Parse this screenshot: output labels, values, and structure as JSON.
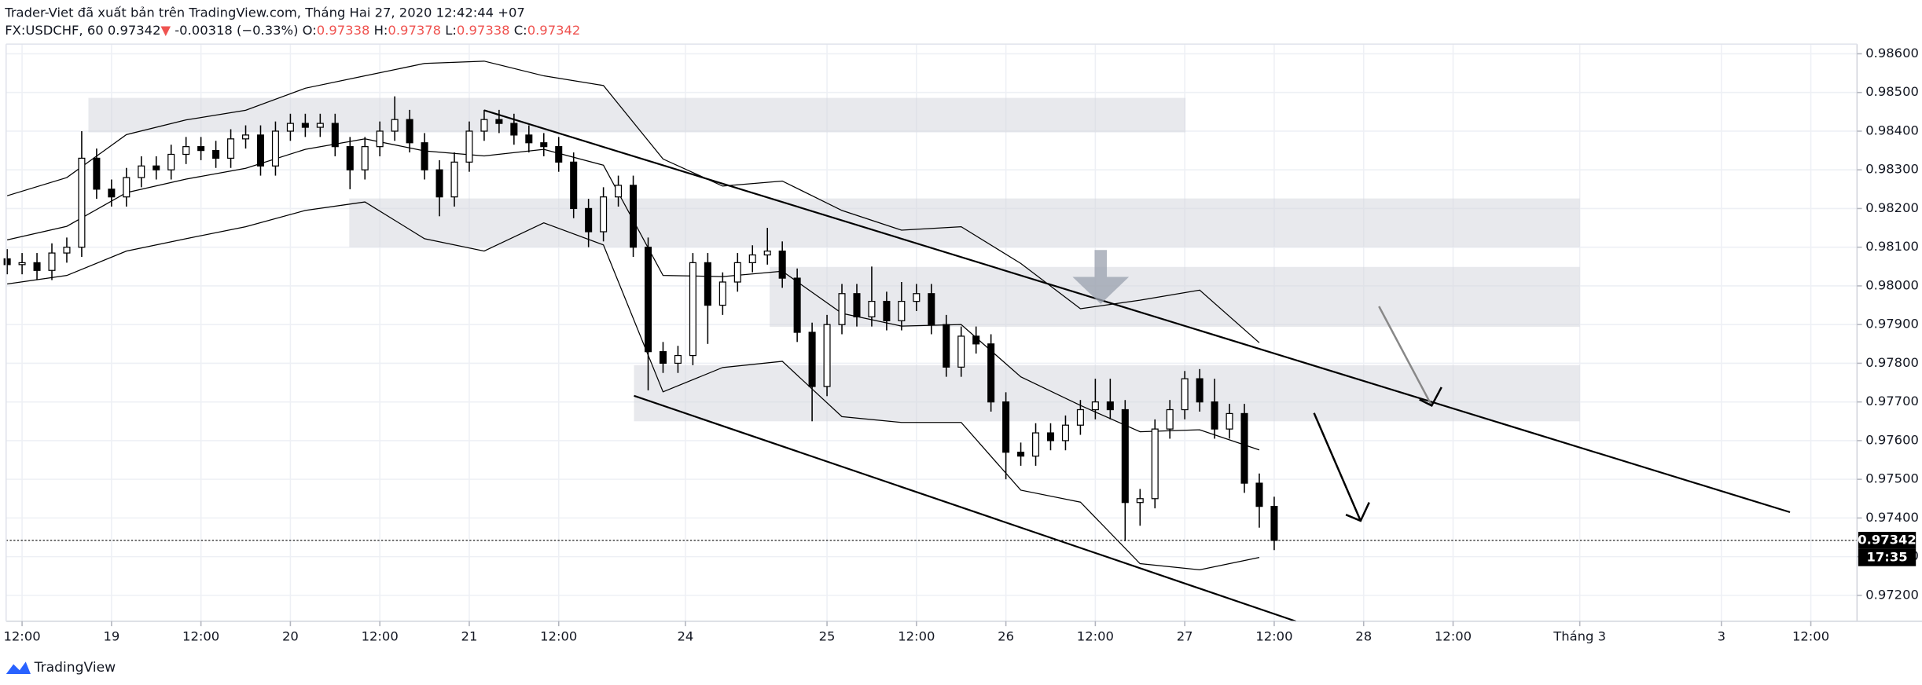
{
  "header": {
    "title": "Trader-Viet đã xuất bản trên TradingView.com, Tháng Hai 27, 2020 12:42:44 +07",
    "symbol": "FX:USDCHF, 60",
    "last": "0.97342",
    "direction": "▼",
    "change": "-0.00318 (−0.33%)",
    "ohlc": [
      {
        "key": "O:",
        "value": "0.97338"
      },
      {
        "key": "H:",
        "value": "0.97378"
      },
      {
        "key": "L:",
        "value": "0.97338"
      },
      {
        "key": "C:",
        "value": "0.97342"
      }
    ]
  },
  "chart_data": {
    "type": "candlestick",
    "grid": true,
    "up_color": "#ffffff",
    "down_color": "#000000",
    "xlim": [
      -2.14,
      246.2
    ],
    "ylim": [
      0.97133,
      0.98625
    ],
    "xticks": [
      {
        "value": 0,
        "label": "12:00"
      },
      {
        "value": 12,
        "label": "19"
      },
      {
        "value": 24,
        "label": "12:00"
      },
      {
        "value": 36,
        "label": "20"
      },
      {
        "value": 48,
        "label": "12:00"
      },
      {
        "value": 60,
        "label": "21"
      },
      {
        "value": 72,
        "label": "12:00"
      },
      {
        "value": 89,
        "label": "24"
      },
      {
        "value": 108,
        "label": "25"
      },
      {
        "value": 120,
        "label": "12:00"
      },
      {
        "value": 132,
        "label": "26"
      },
      {
        "value": 144,
        "label": "12:00"
      },
      {
        "value": 156,
        "label": "27"
      },
      {
        "value": 168,
        "label": "12:00"
      },
      {
        "value": 180,
        "label": "28"
      },
      {
        "value": 192,
        "label": "12:00"
      },
      {
        "value": 209,
        "label": "Tháng 3"
      },
      {
        "value": 228,
        "label": "3"
      },
      {
        "value": 240,
        "label": "12:00"
      }
    ],
    "yticks": [
      {
        "value": 0.972,
        "label": "0.97200"
      },
      {
        "value": 0.973,
        "label": "0.97300"
      },
      {
        "value": 0.974,
        "label": "0.97400"
      },
      {
        "value": 0.975,
        "label": "0.97500"
      },
      {
        "value": 0.976,
        "label": "0.97600"
      },
      {
        "value": 0.977,
        "label": "0.97700"
      },
      {
        "value": 0.978,
        "label": "0.97800"
      },
      {
        "value": 0.979,
        "label": "0.97900"
      },
      {
        "value": 0.98,
        "label": "0.98000"
      },
      {
        "value": 0.981,
        "label": "0.98100"
      },
      {
        "value": 0.982,
        "label": "0.98200"
      },
      {
        "value": 0.983,
        "label": "0.98300"
      },
      {
        "value": 0.984,
        "label": "0.98400"
      },
      {
        "value": 0.985,
        "label": "0.98500"
      },
      {
        "value": 0.986,
        "label": "0.98600"
      }
    ],
    "x": [
      -2,
      0,
      2,
      4,
      6,
      8,
      10,
      12,
      14,
      16,
      18,
      20,
      22,
      24,
      26,
      28,
      30,
      32,
      34,
      36,
      38,
      40,
      42,
      44,
      46,
      48,
      50,
      52,
      54,
      56,
      58,
      60,
      62,
      64,
      66,
      68,
      70,
      72,
      74,
      76,
      78,
      80,
      82,
      84,
      86,
      88,
      90,
      92,
      94,
      96,
      98,
      100,
      102,
      104,
      106,
      108,
      110,
      112,
      114,
      116,
      118,
      120,
      122,
      124,
      126,
      128,
      130,
      132,
      134,
      136,
      138,
      140,
      142,
      144,
      146,
      148,
      150,
      152,
      154,
      156,
      158,
      160,
      162,
      164,
      166,
      168
    ],
    "ohlc": [
      [
        0.9807,
        0.98095,
        0.9803,
        0.98055
      ],
      [
        0.98055,
        0.98085,
        0.9803,
        0.9806
      ],
      [
        0.9806,
        0.98085,
        0.98015,
        0.9804
      ],
      [
        0.9804,
        0.9811,
        0.98015,
        0.98085
      ],
      [
        0.98085,
        0.98125,
        0.9806,
        0.981
      ],
      [
        0.981,
        0.984,
        0.98075,
        0.9833
      ],
      [
        0.9833,
        0.98355,
        0.98225,
        0.9825
      ],
      [
        0.9825,
        0.98275,
        0.98205,
        0.9823
      ],
      [
        0.9823,
        0.98305,
        0.98205,
        0.9828
      ],
      [
        0.9828,
        0.98335,
        0.98255,
        0.9831
      ],
      [
        0.9831,
        0.98335,
        0.98275,
        0.983
      ],
      [
        0.983,
        0.98365,
        0.98275,
        0.9834
      ],
      [
        0.9834,
        0.98385,
        0.98315,
        0.9836
      ],
      [
        0.9836,
        0.98385,
        0.98325,
        0.9835
      ],
      [
        0.9835,
        0.98375,
        0.98305,
        0.9833
      ],
      [
        0.9833,
        0.98405,
        0.98305,
        0.9838
      ],
      [
        0.9838,
        0.98415,
        0.98355,
        0.9839
      ],
      [
        0.9839,
        0.98415,
        0.98285,
        0.9831
      ],
      [
        0.9831,
        0.98425,
        0.98285,
        0.984
      ],
      [
        0.984,
        0.98445,
        0.98375,
        0.9842
      ],
      [
        0.9842,
        0.98445,
        0.98385,
        0.9841
      ],
      [
        0.9841,
        0.98445,
        0.98385,
        0.9842
      ],
      [
        0.9842,
        0.98445,
        0.98335,
        0.9836
      ],
      [
        0.9836,
        0.98385,
        0.9825,
        0.983
      ],
      [
        0.983,
        0.98385,
        0.98275,
        0.9836
      ],
      [
        0.9836,
        0.98425,
        0.98335,
        0.984
      ],
      [
        0.984,
        0.9849,
        0.98375,
        0.9843
      ],
      [
        0.9843,
        0.98455,
        0.98345,
        0.9837
      ],
      [
        0.9837,
        0.98395,
        0.98275,
        0.983
      ],
      [
        0.983,
        0.98325,
        0.9818,
        0.9823
      ],
      [
        0.9823,
        0.98345,
        0.98205,
        0.9832
      ],
      [
        0.9832,
        0.98425,
        0.98295,
        0.984
      ],
      [
        0.984,
        0.98455,
        0.98375,
        0.9843
      ],
      [
        0.9843,
        0.98455,
        0.98395,
        0.9842
      ],
      [
        0.9842,
        0.98445,
        0.98365,
        0.9839
      ],
      [
        0.9839,
        0.98415,
        0.98345,
        0.9837
      ],
      [
        0.9837,
        0.98395,
        0.98335,
        0.9836
      ],
      [
        0.9836,
        0.98385,
        0.98295,
        0.9832
      ],
      [
        0.9832,
        0.98345,
        0.98175,
        0.982
      ],
      [
        0.982,
        0.98225,
        0.981,
        0.9814
      ],
      [
        0.9814,
        0.98255,
        0.98115,
        0.9823
      ],
      [
        0.9823,
        0.98285,
        0.98205,
        0.9826
      ],
      [
        0.9826,
        0.98285,
        0.98075,
        0.981
      ],
      [
        0.981,
        0.98125,
        0.9773,
        0.9783
      ],
      [
        0.9783,
        0.97855,
        0.97775,
        0.978
      ],
      [
        0.978,
        0.97845,
        0.97775,
        0.9782
      ],
      [
        0.9782,
        0.98085,
        0.97795,
        0.9806
      ],
      [
        0.9806,
        0.98085,
        0.9785,
        0.9795
      ],
      [
        0.9795,
        0.98035,
        0.97925,
        0.9801
      ],
      [
        0.9801,
        0.98085,
        0.97985,
        0.9806
      ],
      [
        0.9806,
        0.98105,
        0.98035,
        0.9808
      ],
      [
        0.9808,
        0.9815,
        0.98055,
        0.9809
      ],
      [
        0.9809,
        0.98115,
        0.97995,
        0.9802
      ],
      [
        0.9802,
        0.98045,
        0.97855,
        0.9788
      ],
      [
        0.9788,
        0.97905,
        0.9765,
        0.9774
      ],
      [
        0.9774,
        0.97925,
        0.97715,
        0.979
      ],
      [
        0.979,
        0.98005,
        0.97875,
        0.9798
      ],
      [
        0.9798,
        0.98005,
        0.97895,
        0.9792
      ],
      [
        0.9792,
        0.9805,
        0.97895,
        0.9796
      ],
      [
        0.9796,
        0.97985,
        0.97885,
        0.9791
      ],
      [
        0.9791,
        0.9801,
        0.97885,
        0.9796
      ],
      [
        0.9796,
        0.98005,
        0.97935,
        0.9798
      ],
      [
        0.9798,
        0.98005,
        0.97875,
        0.979
      ],
      [
        0.979,
        0.97925,
        0.97765,
        0.9779
      ],
      [
        0.9779,
        0.97895,
        0.97765,
        0.9787
      ],
      [
        0.9787,
        0.97895,
        0.97825,
        0.9785
      ],
      [
        0.9785,
        0.97875,
        0.97675,
        0.977
      ],
      [
        0.977,
        0.97725,
        0.975,
        0.9757
      ],
      [
        0.9757,
        0.97595,
        0.97535,
        0.9756
      ],
      [
        0.9756,
        0.97645,
        0.97535,
        0.9762
      ],
      [
        0.9762,
        0.97645,
        0.97575,
        0.976
      ],
      [
        0.976,
        0.97665,
        0.97575,
        0.9764
      ],
      [
        0.9764,
        0.97705,
        0.97615,
        0.9768
      ],
      [
        0.9768,
        0.9776,
        0.97655,
        0.977
      ],
      [
        0.977,
        0.9776,
        0.97655,
        0.9768
      ],
      [
        0.9768,
        0.97705,
        0.9734,
        0.9744
      ],
      [
        0.9744,
        0.97475,
        0.9738,
        0.9745
      ],
      [
        0.9745,
        0.97655,
        0.97425,
        0.9763
      ],
      [
        0.9763,
        0.97705,
        0.97605,
        0.9768
      ],
      [
        0.9768,
        0.9778,
        0.97655,
        0.9776
      ],
      [
        0.9776,
        0.97785,
        0.97675,
        0.977
      ],
      [
        0.977,
        0.9776,
        0.97605,
        0.9763
      ],
      [
        0.9763,
        0.97695,
        0.97605,
        0.9767
      ],
      [
        0.9767,
        0.97695,
        0.97465,
        0.9749
      ],
      [
        0.9749,
        0.97515,
        0.97375,
        0.9743
      ],
      [
        0.9743,
        0.97455,
        0.97317,
        0.97342
      ]
    ],
    "bands": {
      "x": [
        -2,
        6,
        14,
        22,
        30,
        38,
        46,
        54,
        62,
        70,
        78,
        86,
        94,
        102,
        110,
        118,
        126,
        134,
        142,
        150,
        158,
        166
      ],
      "upper": [
        0.98233,
        0.9828,
        0.98391,
        0.98429,
        0.98454,
        0.98511,
        0.98543,
        0.98575,
        0.98581,
        0.98543,
        0.98518,
        0.98328,
        0.98258,
        0.98271,
        0.98195,
        0.98144,
        0.98153,
        0.98058,
        0.97941,
        0.97963,
        0.97989,
        0.97853
      ],
      "middle": [
        0.98119,
        0.98154,
        0.98241,
        0.98276,
        0.98304,
        0.98353,
        0.9838,
        0.98349,
        0.98336,
        0.98353,
        0.98312,
        0.98027,
        0.98024,
        0.98038,
        0.97929,
        0.97896,
        0.979,
        0.97765,
        0.97691,
        0.97623,
        0.97628,
        0.97576
      ],
      "lower": [
        0.98005,
        0.98027,
        0.9809,
        0.98122,
        0.98153,
        0.98195,
        0.98217,
        0.98122,
        0.9809,
        0.98163,
        0.98106,
        0.97726,
        0.97789,
        0.97805,
        0.97662,
        0.97647,
        0.97647,
        0.97472,
        0.97441,
        0.97282,
        0.97266,
        0.97298
      ]
    },
    "zones": [
      [
        8.9,
        156.1,
        0.98486,
        0.98397
      ],
      [
        43.9,
        209,
        0.98226,
        0.981
      ],
      [
        100.3,
        209,
        0.98049,
        0.97894
      ],
      [
        82.1,
        209,
        0.97795,
        0.9765
      ]
    ],
    "trend_lines": [
      [
        62,
        0.98454,
        237.2,
        0.97415
      ],
      [
        82.1,
        0.97716,
        170.9,
        0.97133
      ]
    ],
    "last_price_label": "0.97342",
    "countdown": "17:35"
  },
  "footer": "TradingView"
}
